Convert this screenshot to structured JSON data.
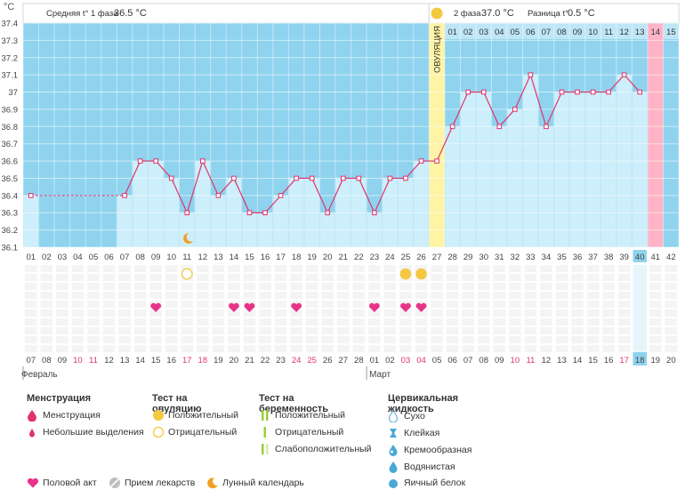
{
  "header": {
    "unit": "°C",
    "phase1_label": "Средняя t° 1 фаза",
    "phase1_value": "36.5 °C",
    "phase2_label": "2 фаза",
    "phase2_value": "37.0 °C",
    "diff_label": "Разница t°",
    "diff_value": "0.5 °C",
    "ovulation_label": "ОВУЛЯЦИЯ"
  },
  "chart_data": {
    "type": "line",
    "ylim": [
      36.1,
      37.4
    ],
    "y_ticks": [
      "37.4",
      "37.3",
      "37.2",
      "37.1",
      "37",
      "36.9",
      "36.8",
      "36.7",
      "36.6",
      "36.5",
      "36.4",
      "36.3",
      "36.2",
      "36.1"
    ],
    "cycle_days": [
      "01",
      "02",
      "03",
      "04",
      "05",
      "06",
      "07",
      "08",
      "09",
      "10",
      "11",
      "12",
      "13",
      "14",
      "15",
      "16",
      "17",
      "18",
      "19",
      "20",
      "21",
      "22",
      "23",
      "24",
      "25",
      "26",
      "27",
      "28",
      "29",
      "30",
      "31",
      "32",
      "33",
      "34",
      "35",
      "36",
      "37",
      "38",
      "39",
      "40",
      "41",
      "42"
    ],
    "phase2_days": [
      "01",
      "02",
      "03",
      "04",
      "05",
      "06",
      "07",
      "08",
      "09",
      "10",
      "11",
      "12",
      "13",
      "14",
      "15"
    ],
    "temperatures": [
      36.4,
      null,
      null,
      null,
      null,
      null,
      36.4,
      36.6,
      36.6,
      36.5,
      36.3,
      36.6,
      36.4,
      36.5,
      36.3,
      36.3,
      36.4,
      36.5,
      36.5,
      36.3,
      36.5,
      36.5,
      36.3,
      36.5,
      36.5,
      36.6,
      36.6,
      36.8,
      37.0,
      37.0,
      36.8,
      36.9,
      37.1,
      36.8,
      37.0,
      37.0,
      37.0,
      37.0,
      37.1,
      37.0,
      null,
      null
    ],
    "dashed_start_day": 1,
    "dashed_end_day": 7,
    "ovulation_day": 27,
    "current_day": 40,
    "pink_day": 41,
    "moon_day": 11,
    "ovulation_tests": [
      {
        "day": 11,
        "result": "negative"
      },
      {
        "day": 25,
        "result": "positive"
      },
      {
        "day": 26,
        "result": "positive"
      }
    ],
    "intercourse_days": [
      9,
      14,
      15,
      18,
      23,
      25,
      26
    ],
    "dates": [
      "07",
      "08",
      "09",
      "10",
      "11",
      "12",
      "13",
      "14",
      "15",
      "16",
      "17",
      "18",
      "19",
      "20",
      "21",
      "22",
      "23",
      "24",
      "25",
      "26",
      "27",
      "28",
      "01",
      "02",
      "03",
      "04",
      "05",
      "06",
      "07",
      "08",
      "09",
      "10",
      "11",
      "12",
      "13",
      "14",
      "15",
      "16",
      "17",
      "18",
      "19",
      "20"
    ],
    "red_dates_idx": [
      3,
      4,
      10,
      11,
      17,
      18,
      24,
      25,
      31,
      32,
      38
    ],
    "current_date_idx": 39,
    "month1": "Февраль",
    "month2": "Март",
    "month2_start_idx": 22
  },
  "legend": {
    "menstruation": {
      "title": "Менструация",
      "items": [
        "Менструация",
        "Небольшие выделения"
      ]
    },
    "ovulation_test": {
      "title": "Тест на овуляцию",
      "items": [
        "Положительный",
        "Отрицательный"
      ]
    },
    "pregnancy_test": {
      "title": "Тест на беременность",
      "items": [
        "Положительный",
        "Отрицательный",
        "Слабоположительный"
      ]
    },
    "cervical": {
      "title": "Цервикальная жидкость",
      "items": [
        "Сухо",
        "Клейкая",
        "Кремообразная",
        "Водянистая",
        "Яичный белок"
      ]
    },
    "bottom": [
      "Половой акт",
      "Прием лекарств",
      "Лунный календарь"
    ]
  },
  "colors": {
    "plot_bg": "#8fd3ee",
    "bar": "#cdeefb",
    "line": "#e0336b",
    "ovulation": "#fff4a6",
    "current": "#8fd3ee",
    "pink": "#ffb3c7",
    "heart": "#e8338b",
    "test_yellow": "#f5c842",
    "red_text": "#e0336b"
  }
}
